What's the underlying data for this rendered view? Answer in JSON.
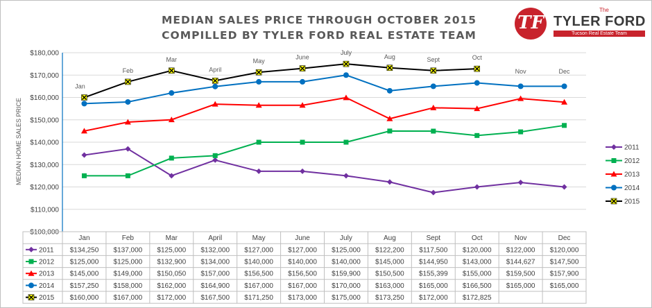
{
  "title_line1": "MEDIAN SALES PRICE THROUGH OCTOBER 2015",
  "title_line2": "COMPILLED BY TYLER FORD REAL ESTATE TEAM",
  "logo": {
    "the": "The",
    "name": "TYLER FORD",
    "tagline": "Tucson Real Estate Team",
    "initials": "TF",
    "accent": "#c8232c"
  },
  "chart_data": {
    "type": "line",
    "ylabel": "MEDIAN HOME SALES PRICE",
    "ylim": [
      100000,
      180000
    ],
    "yticks": [
      "$100,000",
      "$110,000",
      "$120,000",
      "$130,000",
      "$140,000",
      "$150,000",
      "$160,000",
      "$170,000",
      "$180,000"
    ],
    "categories": [
      "Jan",
      "Feb",
      "Mar",
      "April",
      "May",
      "June",
      "July",
      "Aug",
      "Sept",
      "Oct",
      "Nov",
      "Dec"
    ],
    "month_annotations": [
      "Jan",
      "Feb",
      "Mar",
      "April",
      "May",
      "June",
      "July",
      "Aug",
      "Sept",
      "Oct",
      "Nov",
      "Dec"
    ],
    "legend_position": "right",
    "series": [
      {
        "name": "2011",
        "color": "#7030a0",
        "marker": "diamond",
        "values": [
          134250,
          137000,
          125000,
          132000,
          127000,
          127000,
          125000,
          122200,
          117500,
          120000,
          122000,
          120000
        ],
        "labels": [
          "$134,250",
          "$137,000",
          "$125,000",
          "$132,000",
          "$127,000",
          "$127,000",
          "$125,000",
          "$122,200",
          "$117,500",
          "$120,000",
          "$122,000",
          "$120,000"
        ]
      },
      {
        "name": "2012",
        "color": "#00b050",
        "marker": "square",
        "values": [
          125000,
          125000,
          132900,
          134000,
          140000,
          140000,
          140000,
          145000,
          144950,
          143000,
          144627,
          147500
        ],
        "labels": [
          "$125,000",
          "$125,000",
          "$132,900",
          "$134,000",
          "$140,000",
          "$140,000",
          "$140,000",
          "$145,000",
          "$144,950",
          "$143,000",
          "$144,627",
          "$147,500"
        ]
      },
      {
        "name": "2013",
        "color": "#ff0000",
        "marker": "triangle",
        "values": [
          145000,
          149000,
          150050,
          157000,
          156500,
          156500,
          159900,
          150500,
          155399,
          155000,
          159500,
          157900
        ],
        "labels": [
          "$145,000",
          "$149,000",
          "$150,050",
          "$157,000",
          "$156,500",
          "$156,500",
          "$159,900",
          "$150,500",
          "$155,399",
          "$155,000",
          "$159,500",
          "$157,900"
        ]
      },
      {
        "name": "2014",
        "color": "#0070c0",
        "marker": "circle",
        "values": [
          157250,
          158000,
          162000,
          164900,
          167000,
          167000,
          170000,
          163000,
          165000,
          166500,
          165000,
          165000
        ],
        "labels": [
          "$157,250",
          "$158,000",
          "$162,000",
          "$164,900",
          "$167,000",
          "$167,000",
          "$170,000",
          "$163,000",
          "$165,000",
          "$166,500",
          "$165,000",
          "$165,000"
        ]
      },
      {
        "name": "2015",
        "color": "#000000",
        "marker": "x",
        "values": [
          160000,
          167000,
          172000,
          167500,
          171250,
          173000,
          175000,
          173250,
          172000,
          172825,
          null,
          null
        ],
        "labels": [
          "$160,000",
          "$167,000",
          "$172,000",
          "$167,500",
          "$171,250",
          "$173,000",
          "$175,000",
          "$173,250",
          "$172,000",
          "$172,825",
          "",
          ""
        ]
      }
    ]
  }
}
